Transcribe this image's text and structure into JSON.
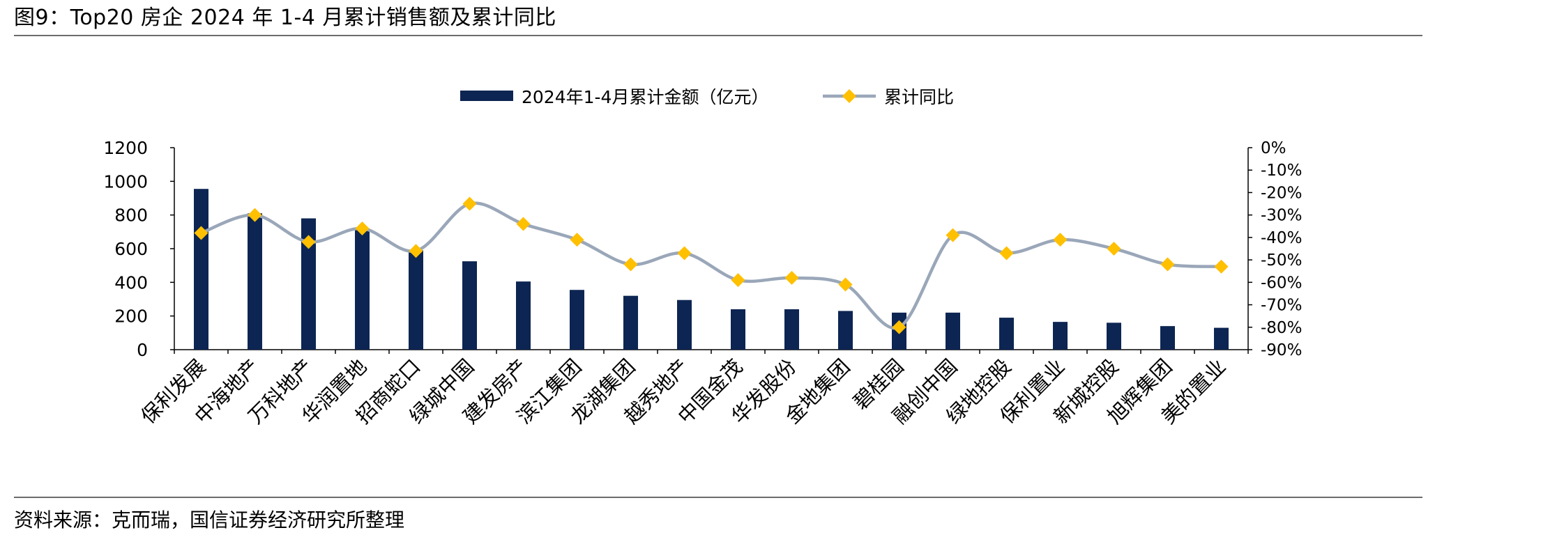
{
  "figure": {
    "title": "图9：Top20 房企 2024 年 1-4 月累计销售额及累计同比",
    "source": "资料来源：克而瑞，国信证券经济研究所整理"
  },
  "colors": {
    "bar": "#0d2552",
    "line": "#9aa7b9",
    "marker": "#ffc000",
    "axis": "#000000",
    "rule": "#6b6b6b"
  },
  "chart_data": {
    "type": "bar",
    "categories": [
      "保利发展",
      "中海地产",
      "万科地产",
      "华润置地",
      "招商蛇口",
      "绿城中国",
      "建发房产",
      "滨江集团",
      "龙湖集团",
      "越秀地产",
      "中国金茂",
      "华发股份",
      "金地集团",
      "碧桂园",
      "融创中国",
      "绿地控股",
      "保利置业",
      "新城控股",
      "旭辉集团",
      "美的置业"
    ],
    "series": [
      {
        "name": "2024年1-4月累计金额（亿元）",
        "type": "bar",
        "axis": "left",
        "values": [
          955,
          810,
          780,
          720,
          590,
          525,
          405,
          355,
          320,
          295,
          240,
          240,
          230,
          220,
          220,
          190,
          165,
          160,
          140,
          130
        ]
      },
      {
        "name": "累计同比",
        "type": "line",
        "axis": "right",
        "values": [
          -38,
          -30,
          -42,
          -36,
          -46,
          -25,
          -34,
          -41,
          -52,
          -47,
          -59,
          -58,
          -61,
          -80,
          -39,
          -47,
          -41,
          -45,
          -52,
          -53
        ]
      }
    ],
    "y_left": {
      "min": 0,
      "max": 1200,
      "step": 200,
      "tick_labels": [
        "0",
        "200",
        "400",
        "600",
        "800",
        "1000",
        "1200"
      ]
    },
    "y_right": {
      "min": -90,
      "max": 0,
      "step": 10,
      "tick_labels": [
        "-90%",
        "-80%",
        "-70%",
        "-60%",
        "-50%",
        "-40%",
        "-30%",
        "-20%",
        "-10%",
        "0%"
      ]
    },
    "legend_position": "top-center",
    "grid": false
  }
}
